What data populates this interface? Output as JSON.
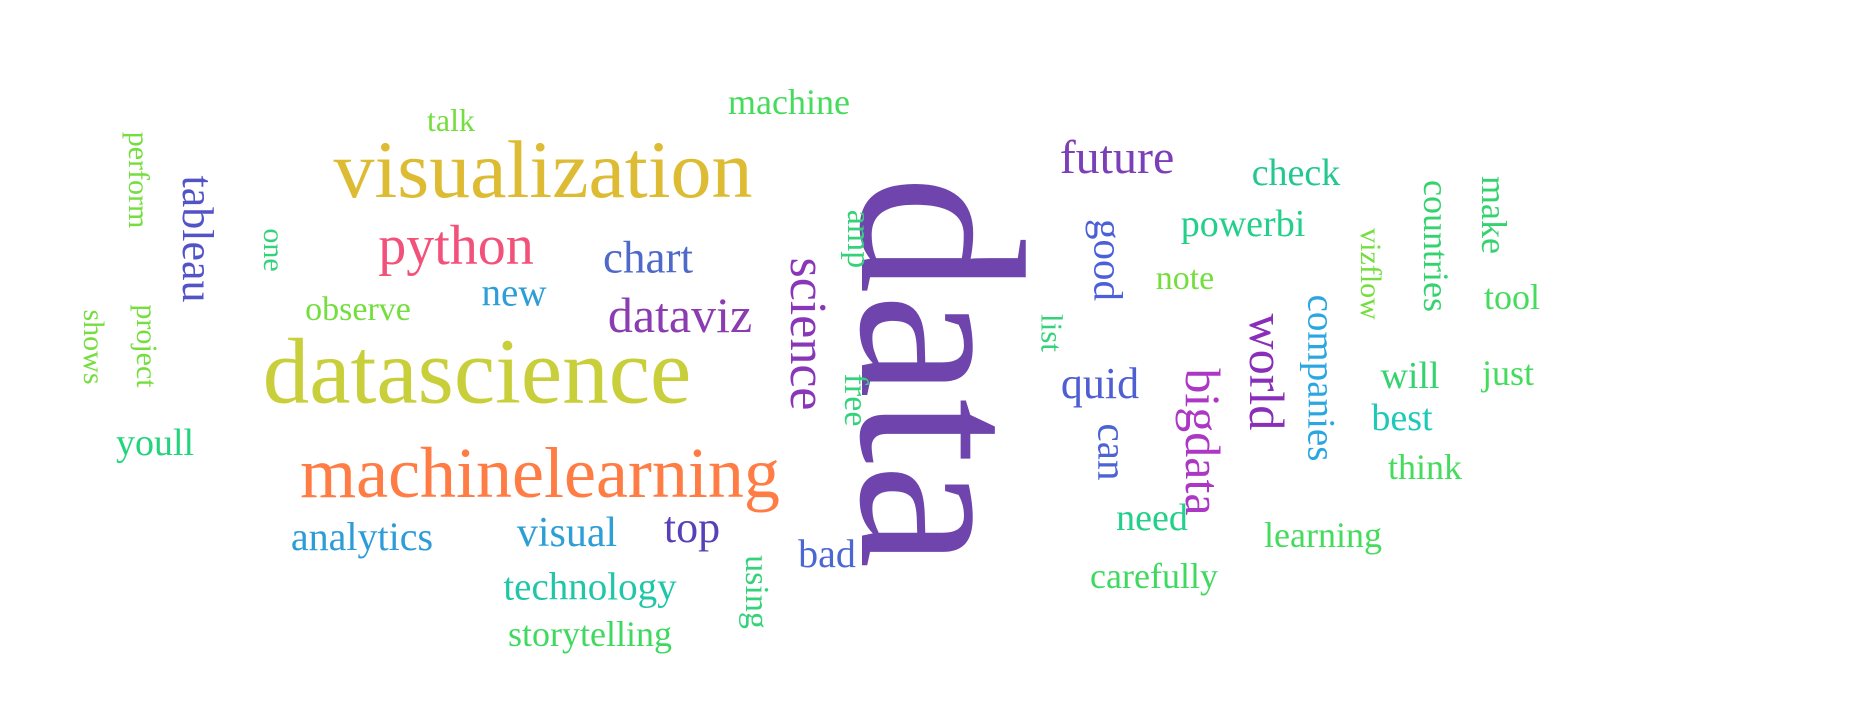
{
  "word_cloud": {
    "words": [
      {
        "text": "data",
        "color": "#6f45ad",
        "orientation": "vertical"
      },
      {
        "text": "visualization",
        "color": "#ddbb33",
        "orientation": "horizontal"
      },
      {
        "text": "datascience",
        "color": "#c8cf3a",
        "orientation": "horizontal"
      },
      {
        "text": "machinelearning",
        "color": "#ff7d45",
        "orientation": "horizontal"
      },
      {
        "text": "python",
        "color": "#f2527a",
        "orientation": "horizontal"
      },
      {
        "text": "future",
        "color": "#7b3fb8",
        "orientation": "horizontal"
      },
      {
        "text": "dataviz",
        "color": "#8a3cb0",
        "orientation": "horizontal"
      },
      {
        "text": "bigdata",
        "color": "#ad37c5",
        "orientation": "vertical"
      },
      {
        "text": "world",
        "color": "#8a2db8",
        "orientation": "vertical"
      },
      {
        "text": "science",
        "color": "#8a36b8",
        "orientation": "vertical"
      },
      {
        "text": "tableau",
        "color": "#5353c8",
        "orientation": "vertical"
      },
      {
        "text": "chart",
        "color": "#4e69c8",
        "orientation": "horizontal"
      },
      {
        "text": "quid",
        "color": "#4f5fd3",
        "orientation": "horizontal"
      },
      {
        "text": "top",
        "color": "#5841b8",
        "orientation": "horizontal"
      },
      {
        "text": "bad",
        "color": "#4b67d3",
        "orientation": "horizontal"
      },
      {
        "text": "good",
        "color": "#4b60d8",
        "orientation": "vertical"
      },
      {
        "text": "can",
        "color": "#4b63d5",
        "orientation": "vertical"
      },
      {
        "text": "analytics",
        "color": "#2d9cd8",
        "orientation": "horizontal"
      },
      {
        "text": "visual",
        "color": "#2d9fd6",
        "orientation": "horizontal"
      },
      {
        "text": "new",
        "color": "#2d9fd6",
        "orientation": "horizontal"
      },
      {
        "text": "companies",
        "color": "#2aa6e1",
        "orientation": "vertical"
      },
      {
        "text": "technology",
        "color": "#20c6a8",
        "orientation": "horizontal"
      },
      {
        "text": "best",
        "color": "#1ec9b9",
        "orientation": "horizontal"
      },
      {
        "text": "check",
        "color": "#22c88f",
        "orientation": "horizontal"
      },
      {
        "text": "powerbi",
        "color": "#22d08a",
        "orientation": "horizontal"
      },
      {
        "text": "need",
        "color": "#22d08a",
        "orientation": "horizontal"
      },
      {
        "text": "youll",
        "color": "#24d47c",
        "orientation": "horizontal"
      },
      {
        "text": "will",
        "color": "#35d36f",
        "orientation": "horizontal"
      },
      {
        "text": "countries",
        "color": "#35d36f",
        "orientation": "vertical"
      },
      {
        "text": "make",
        "color": "#35d36f",
        "orientation": "vertical"
      },
      {
        "text": "storytelling",
        "color": "#40d960",
        "orientation": "horizontal"
      },
      {
        "text": "carefully",
        "color": "#40d960",
        "orientation": "horizontal"
      },
      {
        "text": "learning",
        "color": "#45db5d",
        "orientation": "horizontal"
      },
      {
        "text": "think",
        "color": "#45db5d",
        "orientation": "horizontal"
      },
      {
        "text": "tool",
        "color": "#45db5d",
        "orientation": "horizontal"
      },
      {
        "text": "just",
        "color": "#45db5d",
        "orientation": "horizontal"
      },
      {
        "text": "machine",
        "color": "#45db5d",
        "orientation": "horizontal"
      },
      {
        "text": "amp",
        "color": "#34d27a",
        "orientation": "vertical"
      },
      {
        "text": "free",
        "color": "#34d27a",
        "orientation": "vertical"
      },
      {
        "text": "using",
        "color": "#34d27a",
        "orientation": "vertical"
      },
      {
        "text": "list",
        "color": "#34d27a",
        "orientation": "vertical"
      },
      {
        "text": "note",
        "color": "#74de3e",
        "orientation": "horizontal"
      },
      {
        "text": "observe",
        "color": "#74de3e",
        "orientation": "horizontal"
      },
      {
        "text": "talk",
        "color": "#74de3e",
        "orientation": "horizontal"
      },
      {
        "text": "one",
        "color": "#34d27a",
        "orientation": "vertical"
      },
      {
        "text": "vizflow",
        "color": "#74de3e",
        "orientation": "vertical"
      },
      {
        "text": "perform",
        "color": "#74de3e",
        "orientation": "vertical"
      },
      {
        "text": "project",
        "color": "#74de3e",
        "orientation": "vertical"
      },
      {
        "text": "shows",
        "color": "#74de3e",
        "orientation": "vertical"
      }
    ]
  }
}
